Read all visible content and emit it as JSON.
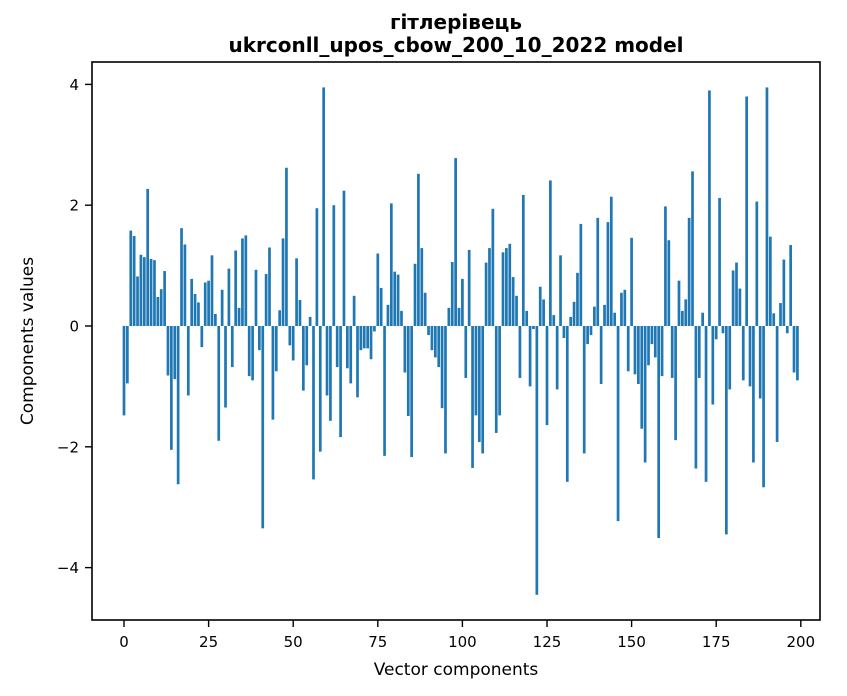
{
  "figure": {
    "background": "#ffffff"
  },
  "chart_data": {
    "type": "bar",
    "title": "гітлерівець",
    "subtitle": "ukrconll_upos_cbow_200_10_2022 model",
    "xlabel": "Vector components",
    "ylabel": "Components values",
    "bar_color": "#1f77b4",
    "grid": false,
    "legend": "none",
    "xlim": [
      -9.5,
      205.6
    ],
    "ylim": [
      -4.87,
      4.37
    ],
    "x_ticks": [
      0,
      25,
      50,
      75,
      100,
      125,
      150,
      175,
      200
    ],
    "y_ticks": [
      {
        "label": "−4",
        "value": -4
      },
      {
        "label": "−2",
        "value": -2
      },
      {
        "label": "0",
        "value": 0
      },
      {
        "label": "2",
        "value": 2
      },
      {
        "label": "4",
        "value": 4
      }
    ],
    "x": "component index 0..199",
    "values": [
      -1.48,
      -0.95,
      1.58,
      1.49,
      0.82,
      1.18,
      1.14,
      2.27,
      1.11,
      1.09,
      0.48,
      0.61,
      0.91,
      -0.82,
      -2.05,
      -0.88,
      -2.62,
      1.62,
      1.35,
      -1.15,
      0.78,
      0.53,
      0.39,
      -0.35,
      0.72,
      0.75,
      1.17,
      0.2,
      -1.9,
      0.6,
      -1.35,
      0.95,
      -0.68,
      1.25,
      0.3,
      1.45,
      1.5,
      -0.83,
      -0.9,
      0.93,
      -0.4,
      -3.35,
      0.86,
      1.3,
      -1.55,
      -0.75,
      0.26,
      1.45,
      2.62,
      -0.32,
      -0.57,
      1.12,
      0.43,
      -1.07,
      -0.65,
      0.15,
      -2.54,
      1.95,
      -2.08,
      3.95,
      -1.15,
      -1.57,
      2.0,
      -0.68,
      -1.84,
      2.24,
      -0.7,
      -0.95,
      0.5,
      -1.18,
      -0.4,
      -0.37,
      -0.37,
      -0.55,
      -0.09,
      1.2,
      0.63,
      -2.15,
      0.35,
      2.03,
      0.9,
      0.85,
      0.25,
      -0.77,
      -1.49,
      -2.17,
      1.03,
      2.52,
      1.29,
      0.55,
      -0.15,
      -0.4,
      -0.52,
      -0.68,
      -1.36,
      -2.11,
      0.3,
      1.06,
      2.78,
      0.3,
      0.78,
      -0.86,
      1.26,
      -2.35,
      -1.48,
      -1.92,
      -2.11,
      1.05,
      1.29,
      1.94,
      -1.77,
      -1.48,
      1.22,
      1.29,
      1.36,
      0.81,
      0.5,
      -0.86,
      2.17,
      0.25,
      -1.0,
      -0.05,
      -4.45,
      0.65,
      0.44,
      -1.64,
      2.41,
      0.18,
      -1.05,
      1.17,
      -0.2,
      -2.58,
      0.15,
      0.4,
      0.88,
      1.69,
      -2.11,
      -0.3,
      -0.15,
      0.32,
      1.79,
      -0.96,
      0.35,
      1.72,
      2.14,
      0.22,
      -3.23,
      0.55,
      0.6,
      -0.75,
      1.46,
      -0.8,
      -0.96,
      -1.7,
      -2.26,
      -0.65,
      -0.3,
      -0.52,
      -3.51,
      -0.83,
      1.98,
      1.42,
      -0.86,
      -1.89,
      0.75,
      0.25,
      0.44,
      1.79,
      2.56,
      -2.36,
      -0.86,
      0.22,
      -2.58,
      3.9,
      -1.3,
      -0.22,
      2.12,
      -0.12,
      -3.45,
      -1.05,
      0.92,
      1.05,
      0.62,
      -0.9,
      3.8,
      -1.0,
      -2.26,
      2.06,
      -1.2,
      -2.67,
      3.95,
      1.48,
      0.21,
      -1.92,
      0.38,
      1.1,
      -0.12,
      1.34,
      -0.77,
      -0.9
    ]
  }
}
